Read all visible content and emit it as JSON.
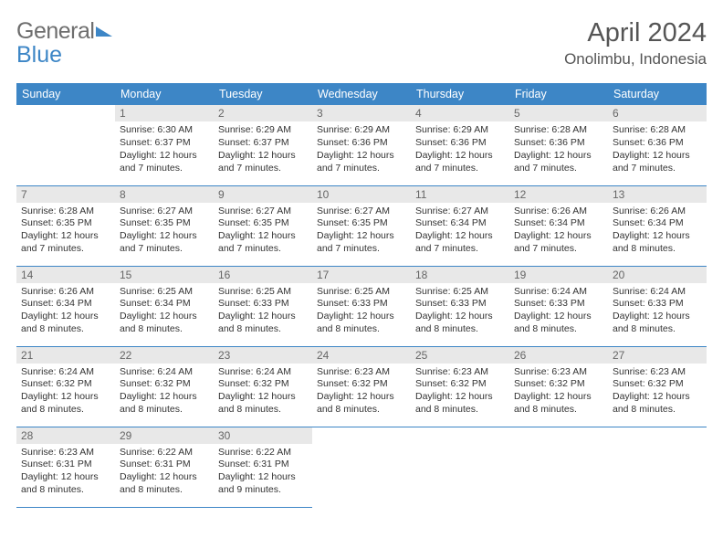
{
  "logo": {
    "part1": "General",
    "part2": "Blue"
  },
  "title": "April 2024",
  "location": "Onolimbu, Indonesia",
  "colors": {
    "header_bg": "#3d86c6",
    "header_text": "#ffffff",
    "daynum_bg": "#e8e8e8",
    "daynum_text": "#666666",
    "body_text": "#333333",
    "title_text": "#555555",
    "row_border": "#3d86c6",
    "logo_gray": "#6e6e6e",
    "logo_blue": "#3d86c6"
  },
  "fonts": {
    "family": "Arial",
    "title_size": 29,
    "location_size": 17,
    "th_size": 12.5,
    "daynum_size": 12,
    "body_size": 10.5
  },
  "weekdays": [
    "Sunday",
    "Monday",
    "Tuesday",
    "Wednesday",
    "Thursday",
    "Friday",
    "Saturday"
  ],
  "start_offset": 1,
  "days": [
    {
      "n": 1,
      "sunrise": "6:30 AM",
      "sunset": "6:37 PM",
      "dl": "12 hours and 7 minutes."
    },
    {
      "n": 2,
      "sunrise": "6:29 AM",
      "sunset": "6:37 PM",
      "dl": "12 hours and 7 minutes."
    },
    {
      "n": 3,
      "sunrise": "6:29 AM",
      "sunset": "6:36 PM",
      "dl": "12 hours and 7 minutes."
    },
    {
      "n": 4,
      "sunrise": "6:29 AM",
      "sunset": "6:36 PM",
      "dl": "12 hours and 7 minutes."
    },
    {
      "n": 5,
      "sunrise": "6:28 AM",
      "sunset": "6:36 PM",
      "dl": "12 hours and 7 minutes."
    },
    {
      "n": 6,
      "sunrise": "6:28 AM",
      "sunset": "6:36 PM",
      "dl": "12 hours and 7 minutes."
    },
    {
      "n": 7,
      "sunrise": "6:28 AM",
      "sunset": "6:35 PM",
      "dl": "12 hours and 7 minutes."
    },
    {
      "n": 8,
      "sunrise": "6:27 AM",
      "sunset": "6:35 PM",
      "dl": "12 hours and 7 minutes."
    },
    {
      "n": 9,
      "sunrise": "6:27 AM",
      "sunset": "6:35 PM",
      "dl": "12 hours and 7 minutes."
    },
    {
      "n": 10,
      "sunrise": "6:27 AM",
      "sunset": "6:35 PM",
      "dl": "12 hours and 7 minutes."
    },
    {
      "n": 11,
      "sunrise": "6:27 AM",
      "sunset": "6:34 PM",
      "dl": "12 hours and 7 minutes."
    },
    {
      "n": 12,
      "sunrise": "6:26 AM",
      "sunset": "6:34 PM",
      "dl": "12 hours and 7 minutes."
    },
    {
      "n": 13,
      "sunrise": "6:26 AM",
      "sunset": "6:34 PM",
      "dl": "12 hours and 8 minutes."
    },
    {
      "n": 14,
      "sunrise": "6:26 AM",
      "sunset": "6:34 PM",
      "dl": "12 hours and 8 minutes."
    },
    {
      "n": 15,
      "sunrise": "6:25 AM",
      "sunset": "6:34 PM",
      "dl": "12 hours and 8 minutes."
    },
    {
      "n": 16,
      "sunrise": "6:25 AM",
      "sunset": "6:33 PM",
      "dl": "12 hours and 8 minutes."
    },
    {
      "n": 17,
      "sunrise": "6:25 AM",
      "sunset": "6:33 PM",
      "dl": "12 hours and 8 minutes."
    },
    {
      "n": 18,
      "sunrise": "6:25 AM",
      "sunset": "6:33 PM",
      "dl": "12 hours and 8 minutes."
    },
    {
      "n": 19,
      "sunrise": "6:24 AM",
      "sunset": "6:33 PM",
      "dl": "12 hours and 8 minutes."
    },
    {
      "n": 20,
      "sunrise": "6:24 AM",
      "sunset": "6:33 PM",
      "dl": "12 hours and 8 minutes."
    },
    {
      "n": 21,
      "sunrise": "6:24 AM",
      "sunset": "6:32 PM",
      "dl": "12 hours and 8 minutes."
    },
    {
      "n": 22,
      "sunrise": "6:24 AM",
      "sunset": "6:32 PM",
      "dl": "12 hours and 8 minutes."
    },
    {
      "n": 23,
      "sunrise": "6:24 AM",
      "sunset": "6:32 PM",
      "dl": "12 hours and 8 minutes."
    },
    {
      "n": 24,
      "sunrise": "6:23 AM",
      "sunset": "6:32 PM",
      "dl": "12 hours and 8 minutes."
    },
    {
      "n": 25,
      "sunrise": "6:23 AM",
      "sunset": "6:32 PM",
      "dl": "12 hours and 8 minutes."
    },
    {
      "n": 26,
      "sunrise": "6:23 AM",
      "sunset": "6:32 PM",
      "dl": "12 hours and 8 minutes."
    },
    {
      "n": 27,
      "sunrise": "6:23 AM",
      "sunset": "6:32 PM",
      "dl": "12 hours and 8 minutes."
    },
    {
      "n": 28,
      "sunrise": "6:23 AM",
      "sunset": "6:31 PM",
      "dl": "12 hours and 8 minutes."
    },
    {
      "n": 29,
      "sunrise": "6:22 AM",
      "sunset": "6:31 PM",
      "dl": "12 hours and 8 minutes."
    },
    {
      "n": 30,
      "sunrise": "6:22 AM",
      "sunset": "6:31 PM",
      "dl": "12 hours and 9 minutes."
    }
  ],
  "labels": {
    "sunrise": "Sunrise:",
    "sunset": "Sunset:",
    "daylight": "Daylight:"
  }
}
